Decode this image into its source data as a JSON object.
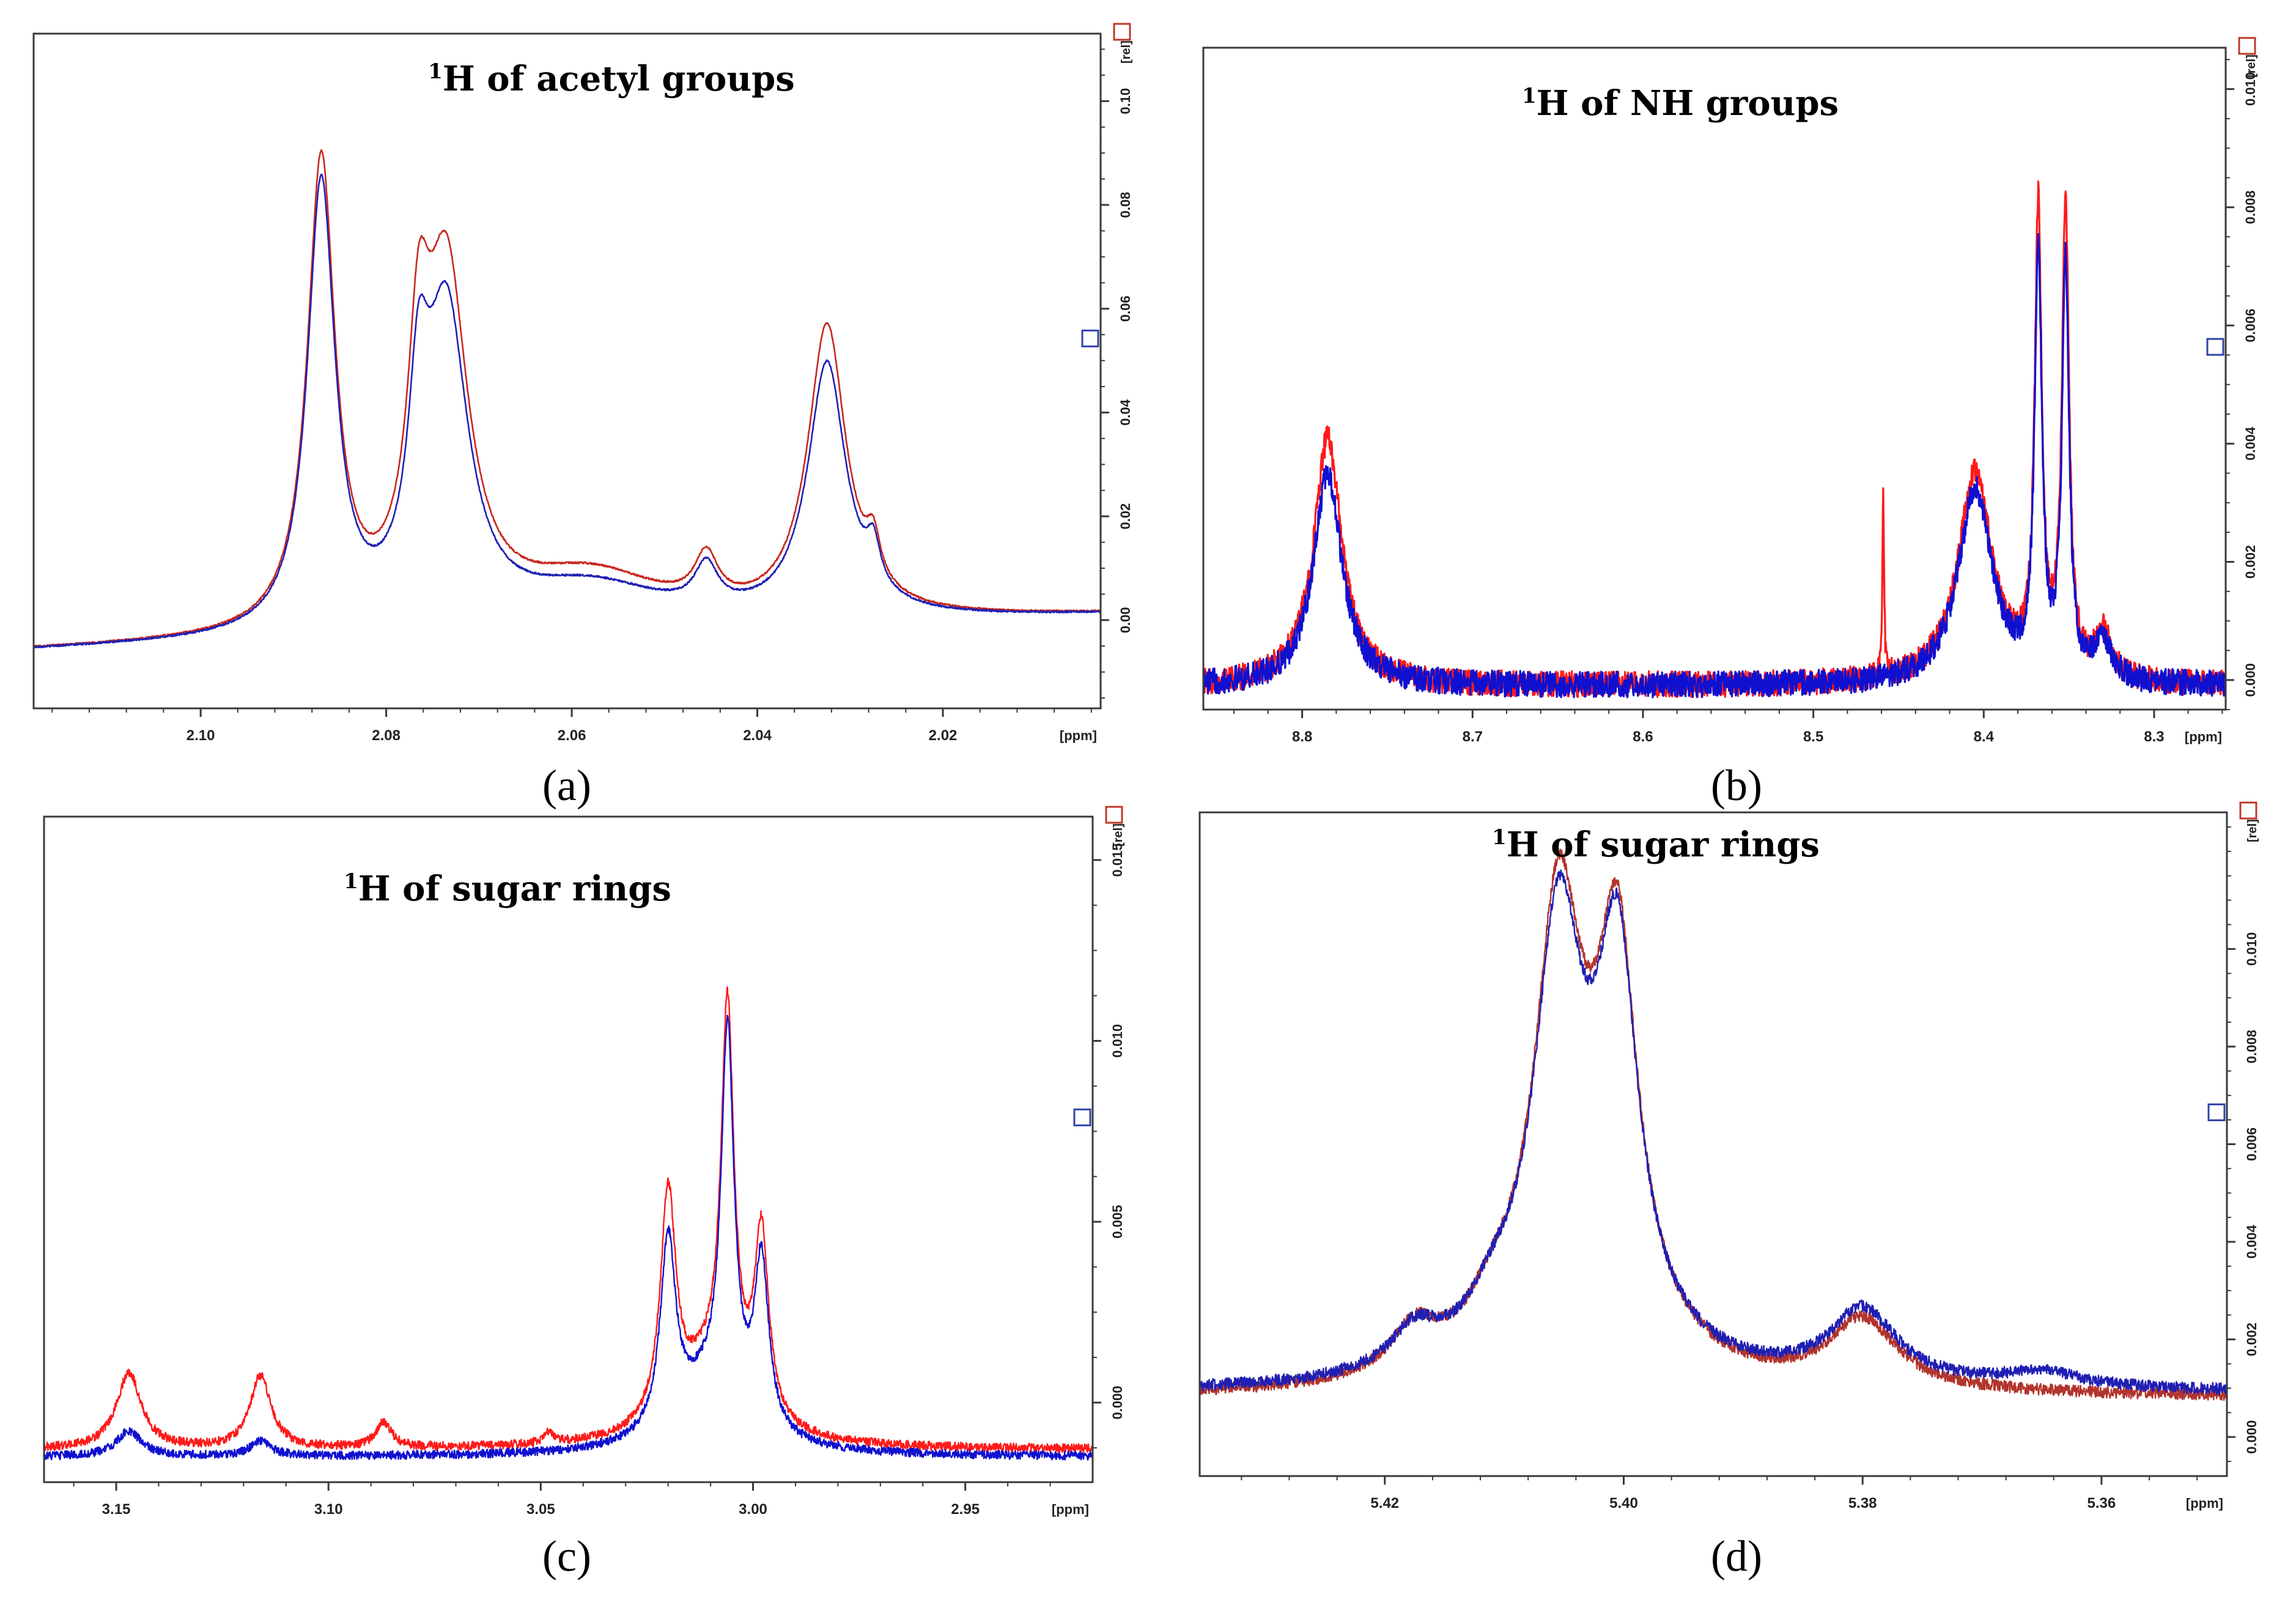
{
  "figure": {
    "panel_labels": [
      "(a)",
      "(b)",
      "(c)",
      "(d)"
    ]
  },
  "colors": {
    "series_red": "#e31a1c",
    "series_blue": "#1f1fc8",
    "frame": "#3a3a3a",
    "marker_red": "#c0392b",
    "marker_blue": "#3344aa"
  },
  "chart_data": [
    {
      "type": "line",
      "panel": "(a)",
      "title_sup": "1",
      "title": "H of acetyl groups",
      "xlabel": "[ppm]",
      "ylabel": "[rel]",
      "xlim": [
        2.118,
        2.003
      ],
      "ylim": [
        -0.017,
        0.113
      ],
      "x_ticks": [
        2.1,
        2.08,
        2.06,
        2.04,
        2.02
      ],
      "x_tick_labels": [
        "2.10",
        "2.08",
        "2.06",
        "2.04",
        "2.02"
      ],
      "y_ticks": [
        0.0,
        0.02,
        0.04,
        0.06,
        0.08,
        0.1
      ],
      "y_tick_labels": [
        "0.00",
        "0.02",
        "0.04",
        "0.06",
        "0.08",
        "0.10"
      ],
      "noise": 0,
      "series": [
        {
          "name": "red",
          "color": "#c8261e",
          "baseline": -0.006,
          "slope": 0.06,
          "peaks": [
            [
              2.087,
              0.09,
              0.0018
            ],
            [
              2.0765,
              0.04,
              0.0014
            ],
            [
              2.0735,
              0.066,
              0.0028
            ],
            [
              2.058,
              0.01,
              0.01
            ],
            [
              2.0455,
              0.009,
              0.0015
            ],
            [
              2.0325,
              0.056,
              0.0025
            ],
            [
              2.0275,
              0.008,
              0.0009
            ]
          ]
        },
        {
          "name": "blue",
          "color": "#1f1fb4",
          "baseline": -0.006,
          "slope": 0.06,
          "peaks": [
            [
              2.087,
              0.086,
              0.0018
            ],
            [
              2.0765,
              0.033,
              0.0013
            ],
            [
              2.0735,
              0.059,
              0.0028
            ],
            [
              2.058,
              0.008,
              0.01
            ],
            [
              2.0455,
              0.008,
              0.0015
            ],
            [
              2.0325,
              0.049,
              0.0025
            ],
            [
              2.0275,
              0.008,
              0.0009
            ]
          ]
        }
      ]
    },
    {
      "type": "line",
      "panel": "(b)",
      "title_sup": "1",
      "title": "H of NH groups",
      "xlabel": "[ppm]",
      "ylabel": "[rel]",
      "xlim": [
        8.858,
        8.258
      ],
      "ylim": [
        -0.0005,
        0.0107
      ],
      "x_ticks": [
        8.8,
        8.7,
        8.6,
        8.5,
        8.4,
        8.3
      ],
      "x_tick_labels": [
        "8.8",
        "8.7",
        "8.6",
        "8.5",
        "8.4",
        "8.3"
      ],
      "y_ticks": [
        0.0,
        0.002,
        0.004,
        0.006,
        0.008,
        0.01
      ],
      "y_tick_labels": [
        "0.000",
        "0.002",
        "0.004",
        "0.006",
        "0.008",
        "0.010"
      ],
      "noise": 0.00022,
      "series": [
        {
          "name": "red",
          "color": "#ff1a1a",
          "baseline": -0.0001,
          "slope": 0,
          "peaks": [
            [
              8.785,
              0.0042,
              0.01
            ],
            [
              8.459,
              0.0031,
              0.0006
            ],
            [
              8.405,
              0.0036,
              0.012
            ],
            [
              8.368,
              0.0078,
              0.0025
            ],
            [
              8.352,
              0.008,
              0.0025
            ],
            [
              8.33,
              0.0008,
              0.006
            ]
          ]
        },
        {
          "name": "blue",
          "color": "#1010d0",
          "baseline": -0.0001,
          "slope": 0,
          "peaks": [
            [
              8.785,
              0.0036,
              0.01
            ],
            [
              8.405,
              0.0033,
              0.012
            ],
            [
              8.368,
              0.0072,
              0.0025
            ],
            [
              8.352,
              0.007,
              0.0025
            ],
            [
              8.33,
              0.0007,
              0.006
            ]
          ]
        }
      ]
    },
    {
      "type": "line",
      "panel": "(c)",
      "title_sup": "1",
      "title": "H of sugar rings",
      "xlabel": "[ppm]",
      "ylabel": "[rel]",
      "xlim": [
        3.167,
        2.92
      ],
      "ylim": [
        -0.0022,
        0.0162
      ],
      "x_ticks": [
        3.15,
        3.1,
        3.05,
        3.0,
        2.95
      ],
      "x_tick_labels": [
        "3.15",
        "3.10",
        "3.05",
        "3.00",
        "2.95"
      ],
      "y_ticks": [
        0.0,
        0.005,
        0.01,
        0.015
      ],
      "y_tick_labels": [
        "0.000",
        "0.005",
        "0.010",
        "0.015"
      ],
      "noise": 0.00012,
      "series": [
        {
          "name": "red",
          "color": "#ff1a1a",
          "baseline": -0.0013,
          "slope": 0,
          "peaks": [
            [
              3.147,
              0.0021,
              0.0035
            ],
            [
              3.116,
              0.002,
              0.003
            ],
            [
              3.087,
              0.0007,
              0.0022
            ],
            [
              3.048,
              0.0003,
              0.0015
            ],
            [
              3.02,
              0.0062,
              0.0022
            ],
            [
              3.006,
              0.0105,
              0.0018
            ],
            [
              2.998,
              0.0051,
              0.002
            ],
            [
              3.01,
              0.002,
              0.01
            ]
          ]
        },
        {
          "name": "blue",
          "color": "#1010d0",
          "baseline": -0.0015,
          "slope": 0,
          "peaks": [
            [
              3.147,
              0.0007,
              0.0035
            ],
            [
              3.116,
              0.0004,
              0.003
            ],
            [
              3.02,
              0.0052,
              0.0022
            ],
            [
              3.006,
              0.0102,
              0.0018
            ],
            [
              2.998,
              0.0046,
              0.002
            ],
            [
              3.01,
              0.0018,
              0.01
            ]
          ]
        }
      ]
    },
    {
      "type": "line",
      "panel": "(d)",
      "title_sup": "1",
      "title": "H of sugar rings",
      "xlabel": "[ppm]",
      "ylabel": "[rel]",
      "xlim": [
        5.4355,
        5.3495
      ],
      "ylim": [
        -0.0008,
        0.0128
      ],
      "x_ticks": [
        5.42,
        5.4,
        5.38,
        5.36
      ],
      "x_tick_labels": [
        "5.42",
        "5.40",
        "5.38",
        "5.36"
      ],
      "y_ticks": [
        0.0,
        0.002,
        0.004,
        0.006,
        0.008,
        0.01
      ],
      "y_tick_labels": [
        "0.000",
        "0.002",
        "0.004",
        "0.006",
        "0.008",
        "0.010"
      ],
      "noise": 0.00012,
      "series": [
        {
          "name": "red",
          "color": "#b2342c",
          "baseline": 0.0008,
          "slope": 0,
          "peaks": [
            [
              5.4055,
              0.0082,
              0.0024
            ],
            [
              5.4005,
              0.0072,
              0.002
            ],
            [
              5.403,
              0.002,
              0.006
            ],
            [
              5.4175,
              0.0009,
              0.0025
            ],
            [
              5.38,
              0.0014,
              0.0035
            ],
            [
              5.411,
              0.0007,
              0.0025
            ]
          ]
        },
        {
          "name": "blue",
          "color": "#1f1fb4",
          "baseline": 0.0009,
          "slope": 0,
          "peaks": [
            [
              5.4055,
              0.0078,
              0.0024
            ],
            [
              5.4005,
              0.007,
              0.002
            ],
            [
              5.403,
              0.0019,
              0.006
            ],
            [
              5.4175,
              0.0008,
              0.0025
            ],
            [
              5.38,
              0.0015,
              0.0035
            ],
            [
              5.411,
              0.0007,
              0.0025
            ],
            [
              5.365,
              0.0003,
              0.004
            ]
          ]
        }
      ]
    }
  ]
}
